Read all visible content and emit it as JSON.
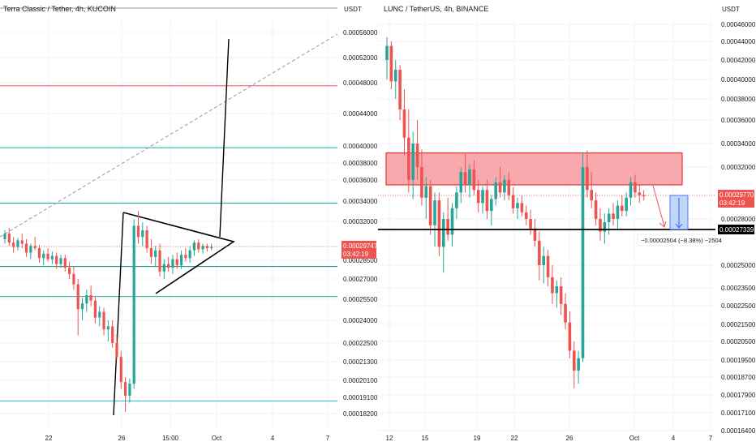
{
  "colors": {
    "up": "#26a69a",
    "down": "#ef5350",
    "price_tag": "#ef5350",
    "dark_tag": "#000000",
    "grid": "#f0f3fa",
    "zone_fill": "#f7a0a4",
    "zone_stroke": "#e53935",
    "measure_fill": "#bbd3f7",
    "measure_stroke": "#2962ff"
  },
  "chart_data": [
    {
      "type": "candlestick",
      "title": "Terra Classic / Tether, 4h, KUCOIN",
      "y_unit": "USDT",
      "ylim": [
        0.000181,
        0.000571
      ],
      "x_ticks": [
        "22",
        "26",
        "15:00",
        "Oct",
        "4",
        "7"
      ],
      "y_ticks": [
        "0.00056000",
        "0.00052000",
        "0.00048000",
        "0.00044000",
        "0.00040000",
        "0.00038000",
        "0.00036000",
        "0.00034000",
        "0.00032000",
        "0.00029747",
        "0.00028500",
        "0.00027000",
        "0.00025500",
        "0.00024000",
        "0.00022500",
        "0.00021300",
        "0.00020100",
        "0.00019100",
        "0.00018200"
      ],
      "last_price": "0.00029747",
      "countdown": "03:42:19",
      "horizontal_lines": [
        {
          "price": 0.000476,
          "color": "#ef5350"
        },
        {
          "price": 0.000398,
          "color": "#26a69a"
        },
        {
          "price": 0.000338,
          "color": "#26a69a"
        },
        {
          "price": 0.00028,
          "color": "#00897b"
        },
        {
          "price": 0.000257,
          "color": "#26a69a"
        },
        {
          "price": 0.000189,
          "color": "#26c6da"
        }
      ],
      "drawings": [
        "symmetrical triangle",
        "flagpole",
        "projected breakout line",
        "dashed trend line"
      ],
      "candles": [
        [
          0.000304,
          0.000312,
          0.0003,
          0.000309
        ],
        [
          0.000309,
          0.000314,
          0.000298,
          0.000301
        ],
        [
          0.000301,
          0.000306,
          0.000292,
          0.000297
        ],
        [
          0.000297,
          0.000305,
          0.000294,
          0.000303
        ],
        [
          0.000303,
          0.000309,
          0.000296,
          0.0003
        ],
        [
          0.0003,
          0.000304,
          0.000288,
          0.000292
        ],
        [
          0.000292,
          0.0003,
          0.000286,
          0.000298
        ],
        [
          0.000298,
          0.000306,
          0.000294,
          0.000296
        ],
        [
          0.000296,
          0.000299,
          0.000283,
          0.000287
        ],
        [
          0.000287,
          0.000294,
          0.000281,
          0.000291
        ],
        [
          0.000291,
          0.000296,
          0.000284,
          0.000286
        ],
        [
          0.000286,
          0.000293,
          0.000282,
          0.000289
        ],
        [
          0.000289,
          0.000292,
          0.000278,
          0.000282
        ],
        [
          0.000282,
          0.00029,
          0.000279,
          0.000287
        ],
        [
          0.000287,
          0.00029,
          0.000276,
          0.000279
        ],
        [
          0.000279,
          0.000284,
          0.00027,
          0.000274
        ],
        [
          0.000274,
          0.00028,
          0.000262,
          0.000266
        ],
        [
          0.000266,
          0.00027,
          0.00023,
          0.000248
        ],
        [
          0.000248,
          0.000256,
          0.00024,
          0.000252
        ],
        [
          0.000252,
          0.000262,
          0.000246,
          0.000258
        ],
        [
          0.000258,
          0.000265,
          0.00025,
          0.000254
        ],
        [
          0.000254,
          0.000257,
          0.000238,
          0.000242
        ],
        [
          0.000242,
          0.00025,
          0.000236,
          0.000246
        ],
        [
          0.000246,
          0.000249,
          0.00023,
          0.000234
        ],
        [
          0.000234,
          0.00024,
          0.000226,
          0.000236
        ],
        [
          0.000236,
          0.00024,
          0.000222,
          0.000225
        ],
        [
          0.000225,
          0.000231,
          0.000214,
          0.000216
        ],
        [
          0.000216,
          0.00022,
          0.000196,
          0.0002
        ],
        [
          0.0002,
          0.000203,
          0.000183,
          0.000192
        ],
        [
          0.000192,
          0.000202,
          0.000188,
          0.000199
        ],
        [
          0.000199,
          0.000322,
          0.000196,
          0.000316
        ],
        [
          0.000316,
          0.00033,
          0.0003,
          0.000306
        ],
        [
          0.000306,
          0.000319,
          0.000298,
          0.000312
        ],
        [
          0.000312,
          0.000316,
          0.000292,
          0.000296
        ],
        [
          0.000296,
          0.000304,
          0.000282,
          0.000288
        ],
        [
          0.000288,
          0.000298,
          0.00028,
          0.000294
        ],
        [
          0.000294,
          0.0003,
          0.000272,
          0.000276
        ],
        [
          0.000276,
          0.000286,
          0.00027,
          0.000282
        ],
        [
          0.000282,
          0.000288,
          0.000276,
          0.000279
        ],
        [
          0.000279,
          0.00029,
          0.000274,
          0.000286
        ],
        [
          0.000286,
          0.000292,
          0.000278,
          0.000281
        ],
        [
          0.000281,
          0.000294,
          0.000278,
          0.00029
        ],
        [
          0.00029,
          0.000296,
          0.000284,
          0.000287
        ],
        [
          0.000287,
          0.000298,
          0.000283,
          0.000294
        ],
        [
          0.000294,
          0.000303,
          0.000289,
          0.000301
        ],
        [
          0.000301,
          0.000304,
          0.000292,
          0.000295
        ],
        [
          0.000295,
          0.0003,
          0.000291,
          0.000298
        ],
        [
          0.000298,
          0.0003,
          0.000293,
          0.000296
        ],
        [
          0.000296,
          0.0003,
          0.000294,
          0.000297
        ]
      ]
    },
    {
      "type": "candlestick",
      "title": "LUNC / TetherUS, 4h, BINANCE",
      "y_unit": "USDT",
      "ylim": [
        0.000164,
        0.000472
      ],
      "x_ticks": [
        "12",
        "15",
        "19",
        "22",
        "26",
        "Oct",
        "4",
        "7"
      ],
      "y_ticks": [
        "0.00046000",
        "0.00044000",
        "0.00042000",
        "0.00040000",
        "0.00038000",
        "0.00036000",
        "0.00034000",
        "0.00032000",
        "0.00029770",
        "0.00028000",
        "0.00027339",
        "0.00025000",
        "0.00023500",
        "0.00022500",
        "0.00021500",
        "0.00020500",
        "0.00019500",
        "0.00018700",
        "0.00017900",
        "0.00017100",
        "0.00016400"
      ],
      "last_price": "0.00029770",
      "countdown": "03:42:19",
      "support_price": "0.00027339",
      "resistance_zone": [
        0.000306,
        0.000332
      ],
      "measure_label": "−0.00002504 (−8.38%) −2504",
      "candles": [
        [
          0.00042,
          0.000445,
          0.0004,
          0.000435
        ],
        [
          0.000435,
          0.00044,
          0.00039,
          0.000398
        ],
        [
          0.000398,
          0.00042,
          0.00038,
          0.00041
        ],
        [
          0.00041,
          0.000415,
          0.00036,
          0.00037
        ],
        [
          0.00037,
          0.00039,
          0.00033,
          0.000345
        ],
        [
          0.000345,
          0.00037,
          0.0003,
          0.00031
        ],
        [
          0.00031,
          0.00035,
          0.000295,
          0.00034
        ],
        [
          0.00034,
          0.00036,
          0.00031,
          0.00032
        ],
        [
          0.00032,
          0.000335,
          0.00029,
          0.000296
        ],
        [
          0.000296,
          0.000312,
          0.00028,
          0.000305
        ],
        [
          0.000305,
          0.00031,
          0.00027,
          0.000276
        ],
        [
          0.000276,
          0.0003,
          0.000262,
          0.000294
        ],
        [
          0.000294,
          0.0003,
          0.000256,
          0.000262
        ],
        [
          0.000262,
          0.000285,
          0.000245,
          0.00028
        ],
        [
          0.00028,
          0.000296,
          0.000266,
          0.00027
        ],
        [
          0.00027,
          0.000292,
          0.000262,
          0.000288
        ],
        [
          0.000288,
          0.000305,
          0.00028,
          0.0003
        ],
        [
          0.0003,
          0.00032,
          0.000292,
          0.000316
        ],
        [
          0.000316,
          0.000332,
          0.0003,
          0.000306
        ],
        [
          0.000306,
          0.000322,
          0.000296,
          0.000318
        ],
        [
          0.000318,
          0.000326,
          0.000298,
          0.000302
        ],
        [
          0.000302,
          0.00031,
          0.000285,
          0.000292
        ],
        [
          0.000292,
          0.000305,
          0.000284,
          0.000302
        ],
        [
          0.000302,
          0.00031,
          0.00028,
          0.000286
        ],
        [
          0.000286,
          0.000298,
          0.000276,
          0.000295
        ],
        [
          0.000295,
          0.000312,
          0.00029,
          0.000308
        ],
        [
          0.000308,
          0.00032,
          0.000296,
          0.0003
        ],
        [
          0.0003,
          0.000314,
          0.000294,
          0.00031
        ],
        [
          0.00031,
          0.000316,
          0.000294,
          0.000298
        ],
        [
          0.000298,
          0.000304,
          0.000284,
          0.000288
        ],
        [
          0.000288,
          0.000296,
          0.00028,
          0.000292
        ],
        [
          0.000292,
          0.000298,
          0.000282,
          0.000285
        ],
        [
          0.000285,
          0.00029,
          0.000276,
          0.00028
        ],
        [
          0.00028,
          0.000287,
          0.00027,
          0.000274
        ],
        [
          0.000274,
          0.00028,
          0.000262,
          0.000266
        ],
        [
          0.000266,
          0.000272,
          0.00024,
          0.00025
        ],
        [
          0.00025,
          0.000262,
          0.000238,
          0.000256
        ],
        [
          0.000256,
          0.00026,
          0.000236,
          0.000242
        ],
        [
          0.000242,
          0.00025,
          0.000226,
          0.000232
        ],
        [
          0.000232,
          0.00024,
          0.000224,
          0.000236
        ],
        [
          0.000236,
          0.000242,
          0.00022,
          0.000226
        ],
        [
          0.000226,
          0.000232,
          0.000212,
          0.000216
        ],
        [
          0.000216,
          0.000222,
          0.000196,
          0.0002
        ],
        [
          0.0002,
          0.000205,
          0.000182,
          0.00019
        ],
        [
          0.00019,
          0.0002,
          0.000184,
          0.000196
        ],
        [
          0.000196,
          0.000332,
          0.000194,
          0.00032
        ],
        [
          0.00032,
          0.000334,
          0.000296,
          0.000302
        ],
        [
          0.000302,
          0.000316,
          0.000288,
          0.000294
        ],
        [
          0.000294,
          0.0003,
          0.000276,
          0.00028
        ],
        [
          0.00028,
          0.000288,
          0.000266,
          0.000272
        ],
        [
          0.000272,
          0.000284,
          0.000264,
          0.000278
        ],
        [
          0.000278,
          0.000288,
          0.00027,
          0.000284
        ],
        [
          0.000284,
          0.000292,
          0.000276,
          0.00028
        ],
        [
          0.00028,
          0.000294,
          0.000274,
          0.00029
        ],
        [
          0.00029,
          0.000298,
          0.000282,
          0.000286
        ],
        [
          0.000286,
          0.0003,
          0.000282,
          0.000296
        ],
        [
          0.000296,
          0.000312,
          0.00029,
          0.000308
        ],
        [
          0.000308,
          0.000314,
          0.000296,
          0.0003
        ],
        [
          0.0003,
          0.000306,
          0.000292,
          0.000298
        ],
        [
          0.000298,
          0.000302,
          0.000294,
          0.000297
        ]
      ]
    }
  ]
}
